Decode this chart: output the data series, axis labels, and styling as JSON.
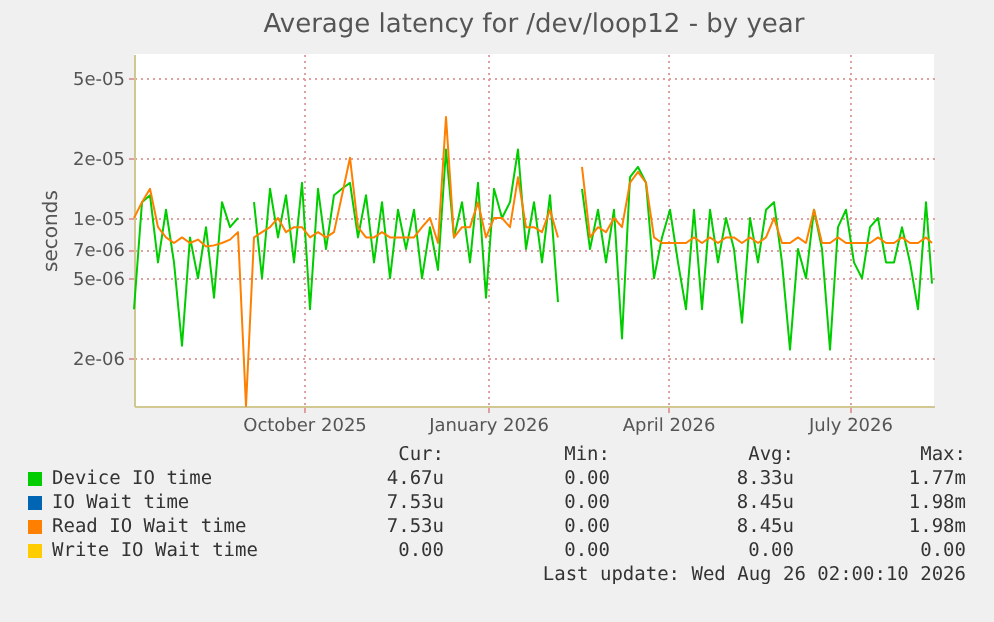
{
  "chart_data": {
    "type": "line",
    "title": "Average latency for /dev/loop12 - by year",
    "ylabel": "seconds",
    "log": true,
    "grid": true,
    "legend": "bottom",
    "marker": "none",
    "line_style": "solid",
    "ylim": [
      1.15e-06,
      6.6e-05
    ],
    "yticks": [
      {
        "value": 2e-06,
        "label": "2e-06"
      },
      {
        "value": 5e-06,
        "label": "5e-06"
      },
      {
        "value": 7e-06,
        "label": "7e-06"
      },
      {
        "value": 1e-05,
        "label": "1e-05"
      },
      {
        "value": 2e-05,
        "label": "2e-05"
      },
      {
        "value": 5e-05,
        "label": "5e-05"
      }
    ],
    "xlim": [
      "2025-07-08",
      "2026-08-12"
    ],
    "xticks": [
      {
        "value": "2025-10-01",
        "label": "October 2025"
      },
      {
        "value": "2026-01-01",
        "label": "January 2026"
      },
      {
        "value": "2026-04-01",
        "label": "April 2026"
      },
      {
        "value": "2026-07-01",
        "label": "July 2026"
      }
    ],
    "x": [
      "2025-07-08",
      "2025-07-12",
      "2025-07-16",
      "2025-07-20",
      "2025-07-24",
      "2025-07-28",
      "2025-08-01",
      "2025-08-05",
      "2025-08-09",
      "2025-08-13",
      "2025-08-17",
      "2025-08-21",
      "2025-08-25",
      "2025-08-29",
      "2025-09-02",
      "2025-09-06",
      "2025-09-10",
      "2025-09-14",
      "2025-09-18",
      "2025-09-22",
      "2025-09-26",
      "2025-09-30",
      "2025-10-04",
      "2025-10-08",
      "2025-10-12",
      "2025-10-16",
      "2025-10-20",
      "2025-10-24",
      "2025-10-28",
      "2025-11-01",
      "2025-11-05",
      "2025-11-09",
      "2025-11-13",
      "2025-11-17",
      "2025-11-21",
      "2025-11-25",
      "2025-11-29",
      "2025-12-03",
      "2025-12-07",
      "2025-12-11",
      "2025-12-15",
      "2025-12-19",
      "2025-12-23",
      "2025-12-27",
      "2025-12-31",
      "2026-01-04",
      "2026-01-08",
      "2026-01-12",
      "2026-01-16",
      "2026-01-20",
      "2026-01-24",
      "2026-01-28",
      "2026-02-01",
      "2026-02-05",
      "2026-02-09",
      "2026-02-13",
      "2026-02-17",
      "2026-02-21",
      "2026-02-25",
      "2026-03-01",
      "2026-03-05",
      "2026-03-09",
      "2026-03-13",
      "2026-03-17",
      "2026-03-21",
      "2026-03-25",
      "2026-03-29",
      "2026-04-02",
      "2026-04-06",
      "2026-04-10",
      "2026-04-14",
      "2026-04-18",
      "2026-04-22",
      "2026-04-26",
      "2026-04-30",
      "2026-05-04",
      "2026-05-08",
      "2026-05-12",
      "2026-05-16",
      "2026-05-20",
      "2026-05-24",
      "2026-05-28",
      "2026-06-01",
      "2026-06-05",
      "2026-06-09",
      "2026-06-13",
      "2026-06-17",
      "2026-06-21",
      "2026-06-25",
      "2026-06-29",
      "2026-07-03",
      "2026-07-07",
      "2026-07-11",
      "2026-07-15",
      "2026-07-19",
      "2026-07-23",
      "2026-07-27",
      "2026-07-31",
      "2026-08-04",
      "2026-08-08",
      "2026-08-11"
    ],
    "series": [
      {
        "name": "Device IO time",
        "color": "#00cc00",
        "values": [
          3.5e-06,
          1.2e-05,
          1.3e-05,
          6e-06,
          1.1e-05,
          6e-06,
          2.3e-06,
          8e-06,
          5e-06,
          9e-06,
          4e-06,
          1.2e-05,
          9e-06,
          1e-05,
          null,
          1.2e-05,
          5e-06,
          1.4e-05,
          8e-06,
          1.3e-05,
          6e-06,
          1.5e-05,
          3.5e-06,
          1.4e-05,
          7e-06,
          1.3e-05,
          1.4e-05,
          1.5e-05,
          8e-06,
          1.3e-05,
          6e-06,
          1.2e-05,
          5e-06,
          1.1e-05,
          7e-06,
          1.1e-05,
          5e-06,
          9e-06,
          5.5e-06,
          2.2e-05,
          8e-06,
          1.2e-05,
          6e-06,
          1.5e-05,
          4e-06,
          1.4e-05,
          1e-05,
          1.2e-05,
          2.2e-05,
          7e-06,
          1.2e-05,
          6e-06,
          1.3e-05,
          3.8e-06,
          null,
          null,
          1.4e-05,
          7e-06,
          1.1e-05,
          6e-06,
          1.1e-05,
          2.5e-06,
          1.6e-05,
          1.8e-05,
          1.5e-05,
          5e-06,
          8e-06,
          1.1e-05,
          6e-06,
          3.5e-06,
          1.1e-05,
          3.5e-06,
          1.1e-05,
          6e-06,
          1e-05,
          7e-06,
          3e-06,
          1e-05,
          6e-06,
          1.1e-05,
          1.2e-05,
          6e-06,
          2.2e-06,
          7e-06,
          5e-06,
          1.1e-05,
          7e-06,
          2.2e-06,
          9e-06,
          1.1e-05,
          6e-06,
          5e-06,
          9e-06,
          1e-05,
          6e-06,
          6e-06,
          9e-06,
          6e-06,
          3.5e-06,
          1.2e-05,
          4.7e-06
        ]
      },
      {
        "name": "IO Wait time",
        "color": "#0066b3",
        "values": [
          null,
          null,
          null,
          null,
          null,
          null,
          null,
          null,
          null,
          null,
          null,
          null,
          null,
          null,
          null,
          null,
          null,
          null,
          null,
          null,
          null,
          null,
          null,
          null,
          null,
          null,
          null,
          null,
          null,
          null,
          null,
          null,
          null,
          null,
          null,
          null,
          null,
          null,
          null,
          null,
          null,
          null,
          null,
          null,
          null,
          null,
          null,
          null,
          null,
          null,
          null,
          null,
          null,
          null,
          null,
          null,
          null,
          null,
          null,
          null,
          null,
          null,
          null,
          null,
          null,
          null,
          null,
          null,
          null,
          null,
          null,
          null,
          null,
          null,
          null,
          null,
          null,
          null,
          null,
          null,
          null,
          null,
          null,
          null,
          null,
          null,
          null,
          null,
          null,
          null,
          null,
          null,
          null,
          null,
          null,
          null,
          null,
          null,
          null,
          null,
          null
        ]
      },
      {
        "name": "Read IO Wait time",
        "color": "#ff8000",
        "values": [
          1e-05,
          1.2e-05,
          1.4e-05,
          9e-06,
          8e-06,
          7.5e-06,
          8e-06,
          7.5e-06,
          7.8e-06,
          7.2e-06,
          7.3e-06,
          7.5e-06,
          7.8e-06,
          8.5e-06,
          1.15e-06,
          8e-06,
          8.5e-06,
          9e-06,
          1e-05,
          8.5e-06,
          9e-06,
          9e-06,
          8e-06,
          8.5e-06,
          8e-06,
          8.5e-06,
          1.3e-05,
          2e-05,
          9e-06,
          8e-06,
          8e-06,
          8.5e-06,
          8e-06,
          8e-06,
          8e-06,
          8e-06,
          9e-06,
          1e-05,
          7.5e-06,
          3.2e-05,
          8e-06,
          9e-06,
          9e-06,
          1.2e-05,
          8e-06,
          1e-05,
          1e-05,
          9e-06,
          1.6e-05,
          9e-06,
          9e-06,
          8.5e-06,
          1.1e-05,
          8e-06,
          null,
          null,
          1.8e-05,
          8e-06,
          9e-06,
          8.5e-06,
          1e-05,
          9e-06,
          1.5e-05,
          1.7e-05,
          1.5e-05,
          8e-06,
          7.5e-06,
          7.5e-06,
          7.5e-06,
          7.5e-06,
          8e-06,
          7.5e-06,
          8e-06,
          7.5e-06,
          8e-06,
          8e-06,
          7.5e-06,
          8e-06,
          7.5e-06,
          8e-06,
          1e-05,
          7.5e-06,
          7.5e-06,
          8e-06,
          7.5e-06,
          1.1e-05,
          7.5e-06,
          7.5e-06,
          8e-06,
          7.5e-06,
          7.5e-06,
          7.5e-06,
          7.5e-06,
          8e-06,
          7.5e-06,
          7.5e-06,
          8e-06,
          7.5e-06,
          7.5e-06,
          8e-06,
          7.5e-06
        ]
      },
      {
        "name": "Write IO Wait time",
        "color": "#ffcc00",
        "values": [
          null,
          null,
          null,
          null,
          null,
          null,
          null,
          null,
          null,
          null,
          null,
          null,
          null,
          null,
          null,
          null,
          null,
          null,
          null,
          null,
          null,
          null,
          null,
          null,
          null,
          null,
          null,
          null,
          null,
          null,
          null,
          null,
          null,
          null,
          null,
          null,
          null,
          null,
          null,
          null,
          null,
          null,
          null,
          null,
          null,
          null,
          null,
          null,
          null,
          null,
          null,
          null,
          null,
          null,
          null,
          null,
          null,
          null,
          null,
          null,
          null,
          null,
          null,
          null,
          null,
          null,
          null,
          null,
          null,
          null,
          null,
          null,
          null,
          null,
          null,
          null,
          null,
          null,
          null,
          null,
          null,
          null,
          null,
          null,
          null,
          null,
          null,
          null,
          null,
          null,
          null,
          null,
          null,
          null,
          null,
          null,
          null,
          null,
          null,
          null,
          null
        ]
      }
    ],
    "annotations": [
      "Cur:",
      "Min:",
      "Avg:",
      "Max:",
      "4.67u",
      "0.00",
      "8.33u",
      "1.77m",
      "7.53u",
      "0.00",
      "8.45u",
      "1.98m",
      "7.53u",
      "0.00",
      "8.45u",
      "1.98m",
      "0.00",
      "0.00",
      "0.00",
      "0.00",
      "Last update: Wed Aug 26 02:00:10 2026"
    ]
  }
}
